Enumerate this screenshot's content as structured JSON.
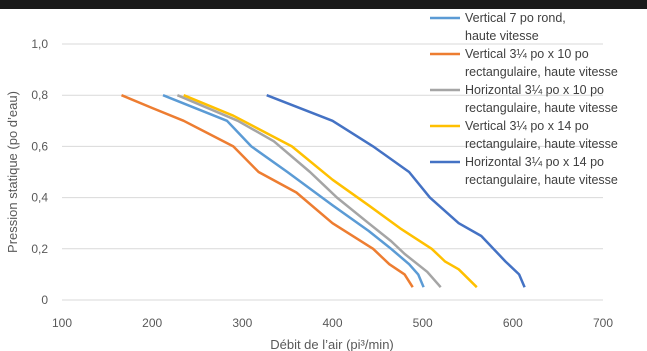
{
  "chart_data": {
    "type": "line",
    "title": "",
    "xlabel": "Débit de l’air (pi³/min)",
    "ylabel": "Pression statique (po d’eau)",
    "xlim": [
      100,
      700
    ],
    "ylim": [
      0,
      1.0
    ],
    "xticks": [
      100,
      200,
      300,
      400,
      500,
      600,
      700
    ],
    "xtick_labels": [
      "100",
      "200",
      "300",
      "400",
      "500",
      "600",
      "700"
    ],
    "yticks": [
      0,
      0.2,
      0.4,
      0.6,
      0.8,
      1.0
    ],
    "ytick_labels": [
      "0",
      "0,2",
      "0,4",
      "0,6",
      "0,8",
      "1,0"
    ],
    "grid": "horizontal",
    "legend_position": "top-right",
    "series": [
      {
        "name": "Vertical 7 po rond, haute vitesse",
        "legend_lines": [
          "Vertical 7 po rond,",
          "haute vitesse"
        ],
        "color": "#5b9bd5",
        "x": [
          212,
          283,
          310,
          350,
          400,
          440,
          465,
          485,
          495,
          501
        ],
        "y": [
          0.8,
          0.7,
          0.6,
          0.5,
          0.37,
          0.27,
          0.2,
          0.14,
          0.1,
          0.05
        ]
      },
      {
        "name": "Vertical 3¼ po x 10 po rectangulaire, haute vitesse",
        "legend_lines": [
          "Vertical 3¼ po x 10 po",
          "rectangulaire, haute vitesse"
        ],
        "color": "#ed7d31",
        "x": [
          166,
          200,
          235,
          290,
          318,
          360,
          400,
          445,
          463,
          480,
          489
        ],
        "y": [
          0.8,
          0.75,
          0.7,
          0.6,
          0.5,
          0.42,
          0.3,
          0.2,
          0.14,
          0.1,
          0.05
        ]
      },
      {
        "name": "Horizontal 3¼ po x 10 po rectangulaire, haute vitesse",
        "legend_lines": [
          "Horizontal 3¼ po x 10 po",
          "rectangulaire, haute vitesse"
        ],
        "color": "#a5a5a5",
        "x": [
          228,
          295,
          335,
          375,
          390,
          405,
          440,
          465,
          480,
          505,
          520
        ],
        "y": [
          0.8,
          0.7,
          0.62,
          0.5,
          0.45,
          0.4,
          0.3,
          0.23,
          0.18,
          0.11,
          0.05
        ]
      },
      {
        "name": "Vertical 3¼ po x 14 po rectangulaire, haute vitesse",
        "legend_lines": [
          "Vertical 3¼ po x 14 po",
          "rectangulaire, haute vitesse"
        ],
        "color": "#ffc000",
        "x": [
          235,
          290,
          355,
          400,
          440,
          475,
          510,
          525,
          540,
          560
        ],
        "y": [
          0.8,
          0.72,
          0.6,
          0.47,
          0.37,
          0.28,
          0.2,
          0.15,
          0.12,
          0.05
        ]
      },
      {
        "name": "Horizontal 3¼ po x 14 po rectangulaire, haute vitesse",
        "legend_lines": [
          "Horizontal 3¼ po x 14 po",
          "rectangulaire, haute vitesse"
        ],
        "color": "#4472c4",
        "x": [
          327,
          400,
          445,
          485,
          508,
          540,
          565,
          592,
          607,
          613
        ],
        "y": [
          0.8,
          0.7,
          0.6,
          0.5,
          0.4,
          0.3,
          0.25,
          0.15,
          0.1,
          0.05
        ]
      }
    ]
  }
}
